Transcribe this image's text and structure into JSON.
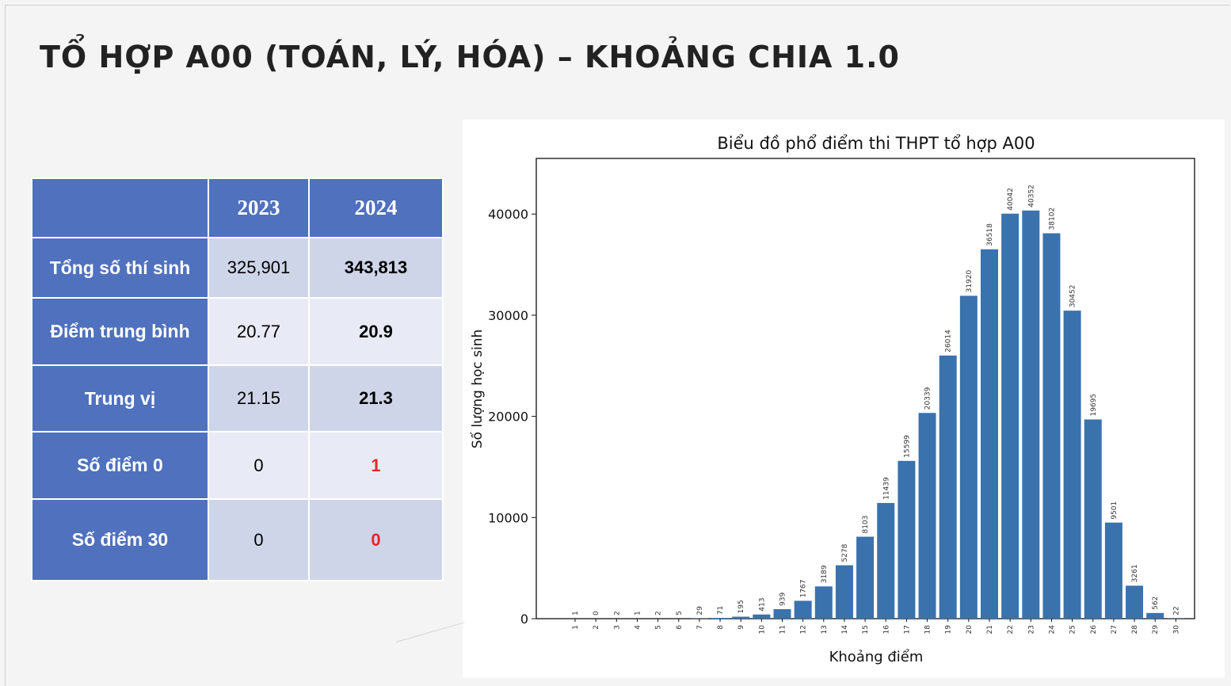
{
  "slide_title": "TỔ HỢP A00 (TOÁN, LÝ, HÓA) – KHOẢNG CHIA 1.0",
  "table": {
    "headers": [
      "",
      "2023",
      "2024"
    ],
    "rows": [
      {
        "label": "Tổng số thí sinh",
        "v2023": "325,901",
        "v2024": "343,813"
      },
      {
        "label": "Điểm trung bình",
        "v2023": "20.77",
        "v2024": "20.9"
      },
      {
        "label": "Trung vị",
        "v2023": "21.15",
        "v2024": "21.3"
      },
      {
        "label": "Số điểm 0",
        "v2023": "0",
        "v2024": "1"
      },
      {
        "label": "Số điểm 30",
        "v2023": "0",
        "v2024": "0"
      }
    ],
    "colors": {
      "header_bg": "#4f71be",
      "highlight_value": "#e8262a"
    }
  },
  "chart_data": {
    "type": "bar",
    "title": "Biểu đồ phổ điểm thi THPT tổ hợp A00",
    "xlabel": "Khoảng điểm",
    "ylabel": "Số lượng học sinh",
    "categories": [
      "1",
      "2",
      "3",
      "4",
      "5",
      "6",
      "7",
      "8",
      "9",
      "10",
      "11",
      "12",
      "13",
      "14",
      "15",
      "16",
      "17",
      "18",
      "19",
      "20",
      "21",
      "22",
      "23",
      "24",
      "25",
      "26",
      "27",
      "28",
      "29",
      "30"
    ],
    "values": [
      1,
      0,
      2,
      1,
      2,
      5,
      29,
      71,
      195,
      413,
      939,
      1767,
      3189,
      5278,
      8103,
      11439,
      15599,
      20339,
      26014,
      31920,
      36518,
      40042,
      40352,
      38102,
      30452,
      19695,
      9501,
      3261,
      562,
      22
    ],
    "yticks": [
      0,
      10000,
      20000,
      30000,
      40000
    ],
    "ylim": [
      0,
      45500
    ],
    "bar_color": "#3a72ad",
    "grid": false,
    "legend": "none"
  }
}
